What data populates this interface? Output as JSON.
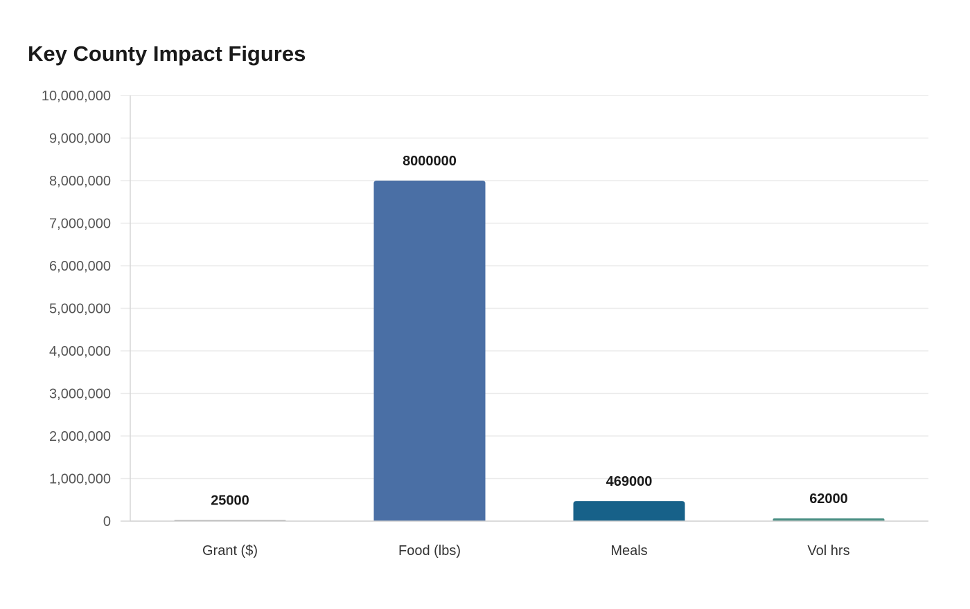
{
  "chart_data": {
    "type": "bar",
    "title": "Key County Impact Figures",
    "xlabel": "",
    "ylabel": "",
    "categories": [
      "Grant ($)",
      "Food (lbs)",
      "Meals",
      "Vol hrs"
    ],
    "values": [
      25000,
      8000000,
      469000,
      62000
    ],
    "data_labels": [
      "25000",
      "8000000",
      "469000",
      "62000"
    ],
    "bar_colors": [
      "#9e9e9e",
      "#4a6fa5",
      "#176189",
      "#4a8f84"
    ],
    "ylim": [
      0,
      10000000
    ],
    "yticks": [
      0,
      1000000,
      2000000,
      3000000,
      4000000,
      5000000,
      6000000,
      7000000,
      8000000,
      9000000,
      10000000
    ],
    "ytick_labels": [
      "0",
      "1,000,000",
      "2,000,000",
      "3,000,000",
      "4,000,000",
      "5,000,000",
      "6,000,000",
      "7,000,000",
      "8,000,000",
      "9,000,000",
      "10,000,000"
    ],
    "grid": true,
    "legend": "none"
  }
}
